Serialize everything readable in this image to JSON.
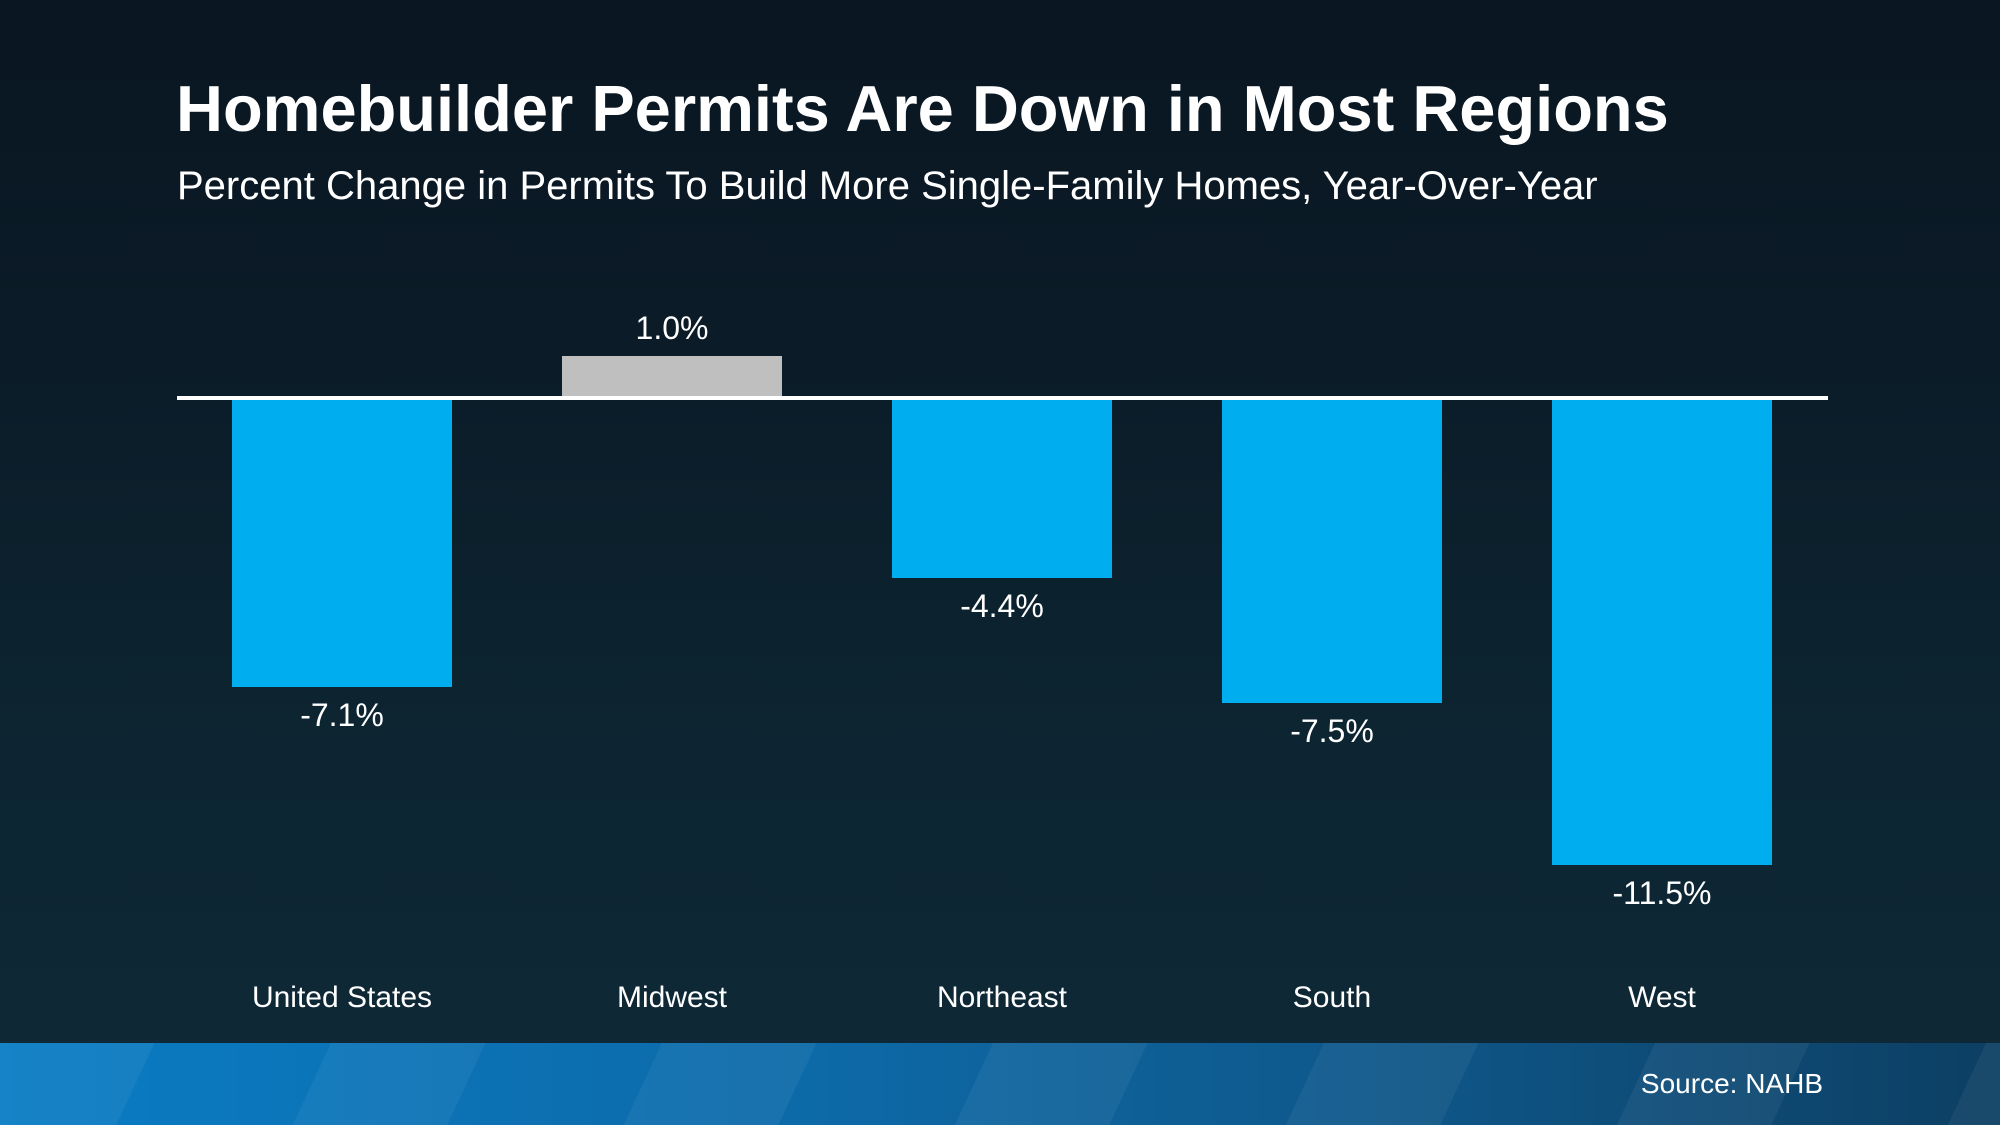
{
  "slide": {
    "title": "Homebuilder Permits Are Down in Most Regions",
    "subtitle": "Percent Change in Permits To Build More Single-Family Homes, Year-Over-Year",
    "source": "Source: NAHB"
  },
  "chart_data": {
    "type": "bar",
    "title": "Homebuilder Permits Are Down in Most Regions",
    "subtitle": "Percent Change in Permits To Build More Single-Family Homes, Year-Over-Year",
    "categories": [
      "United States",
      "Midwest",
      "Northeast",
      "South",
      "West"
    ],
    "values": [
      -7.1,
      1.0,
      -4.4,
      -7.5,
      -11.5
    ],
    "value_labels": [
      "-7.1%",
      "1.0%",
      "-4.4%",
      "-7.5%",
      "-11.5%"
    ],
    "xlabel": "",
    "ylabel": "",
    "ylim": [
      -12,
      2
    ],
    "baseline": 0,
    "grid": false,
    "legend": "none",
    "bar_colors": {
      "positive": "#BFBFBF",
      "negative": "#00AEEF"
    },
    "axis_line_color": "#FFFFFF",
    "source": "Source: NAHB"
  },
  "theme": {
    "background_top": "#0A1621",
    "background_bottom": "#0E2938",
    "text_color": "#FFFFFF",
    "footer_gradient_left": "#0A7CC4",
    "footer_gradient_right": "#0D3F63"
  }
}
